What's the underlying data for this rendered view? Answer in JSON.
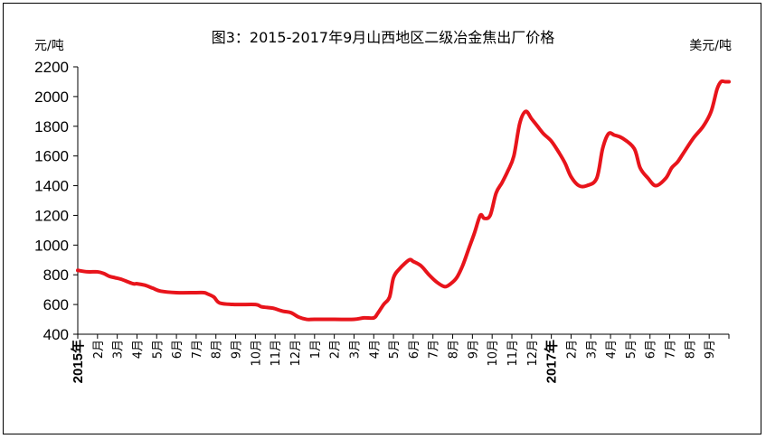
{
  "chart_data": {
    "type": "line",
    "title": "图3：2015-2017年9月山西地区二级冶金焦出厂价格",
    "ylabel_left": "元/吨",
    "ylabel_right": "美元/吨",
    "ylim": [
      400,
      2200
    ],
    "yticks": [
      400,
      600,
      800,
      1000,
      1200,
      1400,
      1600,
      1800,
      2000,
      2200
    ],
    "grid": false,
    "legend": "none",
    "color": "#e8141b",
    "x_start": "2015-01",
    "x_end": "2017-09",
    "x_tick_labels": [
      {
        "pos": 0,
        "label": "2015年",
        "year": true
      },
      {
        "pos": 1,
        "label": "2月"
      },
      {
        "pos": 2,
        "label": "3月"
      },
      {
        "pos": 3,
        "label": "4月"
      },
      {
        "pos": 4,
        "label": "5月"
      },
      {
        "pos": 5,
        "label": "6月"
      },
      {
        "pos": 6,
        "label": "7月"
      },
      {
        "pos": 7,
        "label": "8月"
      },
      {
        "pos": 8,
        "label": "9月"
      },
      {
        "pos": 9,
        "label": "10月"
      },
      {
        "pos": 10,
        "label": "11月"
      },
      {
        "pos": 11,
        "label": "12月"
      },
      {
        "pos": 12,
        "label": "1月"
      },
      {
        "pos": 13,
        "label": "2月"
      },
      {
        "pos": 14,
        "label": "3月"
      },
      {
        "pos": 15,
        "label": "4月"
      },
      {
        "pos": 16,
        "label": "5月"
      },
      {
        "pos": 17,
        "label": "6月"
      },
      {
        "pos": 18,
        "label": "7月"
      },
      {
        "pos": 19,
        "label": "8月"
      },
      {
        "pos": 20,
        "label": "9月"
      },
      {
        "pos": 21,
        "label": "10月"
      },
      {
        "pos": 22,
        "label": "11月"
      },
      {
        "pos": 23,
        "label": "12月"
      },
      {
        "pos": 24,
        "label": "2017年",
        "year": true
      },
      {
        "pos": 25,
        "label": "2月"
      },
      {
        "pos": 26,
        "label": "3月"
      },
      {
        "pos": 27,
        "label": "4月"
      },
      {
        "pos": 28,
        "label": "5月"
      },
      {
        "pos": 29,
        "label": "6月"
      },
      {
        "pos": 30,
        "label": "7月"
      },
      {
        "pos": 31,
        "label": "8月"
      },
      {
        "pos": 32,
        "label": "9月"
      }
    ],
    "x": [
      0,
      0.5,
      1,
      1.3,
      1.6,
      1.9,
      2.2,
      2.8,
      3.0,
      3.4,
      3.8,
      4.2,
      5,
      6,
      6.4,
      6.6,
      6.9,
      7.2,
      8,
      9,
      9.3,
      9.6,
      9.9,
      10.4,
      10.8,
      11.2,
      11.6,
      12,
      13,
      14,
      14.5,
      15,
      15.2,
      15.5,
      15.8,
      16,
      16.3,
      16.8,
      17,
      17.4,
      17.8,
      18.2,
      18.6,
      18.9,
      19.2,
      19.5,
      19.8,
      20.1,
      20.4,
      20.6,
      20.9,
      21.2,
      21.5,
      21.8,
      22.1,
      22.4,
      22.7,
      23.0,
      23.3,
      23.6,
      24,
      24.4,
      24.7,
      25,
      25.4,
      25.8,
      26.3,
      26.6,
      26.9,
      27.2,
      27.6,
      28.2,
      28.5,
      28.9,
      29.3,
      29.8,
      30.1,
      30.4,
      30.7,
      31.2,
      31.7,
      32.1,
      32.4,
      32.6,
      32.8,
      33
    ],
    "values": [
      830,
      820,
      820,
      810,
      790,
      780,
      770,
      740,
      740,
      730,
      710,
      690,
      680,
      680,
      680,
      670,
      650,
      610,
      600,
      600,
      585,
      580,
      575,
      555,
      545,
      515,
      500,
      500,
      500,
      500,
      510,
      510,
      540,
      600,
      650,
      780,
      840,
      900,
      890,
      860,
      800,
      750,
      720,
      740,
      780,
      860,
      970,
      1080,
      1200,
      1180,
      1200,
      1350,
      1420,
      1500,
      1600,
      1820,
      1900,
      1850,
      1800,
      1750,
      1700,
      1620,
      1550,
      1460,
      1400,
      1400,
      1450,
      1650,
      1750,
      1740,
      1720,
      1650,
      1520,
      1450,
      1400,
      1450,
      1520,
      1560,
      1620,
      1720,
      1800,
      1900,
      2050,
      2100,
      2100,
      2100
    ]
  }
}
